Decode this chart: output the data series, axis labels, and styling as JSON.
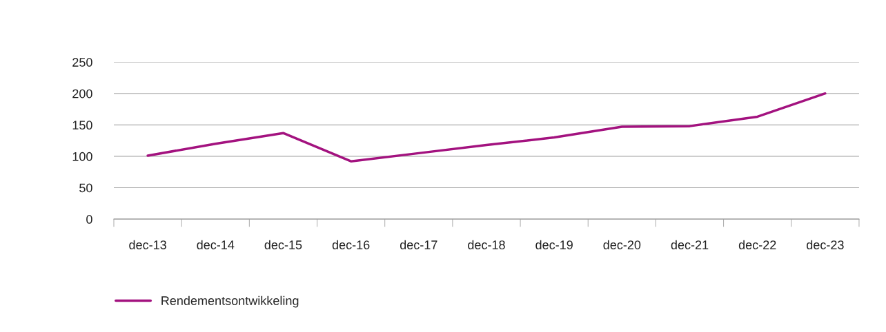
{
  "chart_data": {
    "type": "line",
    "categories": [
      "dec-13",
      "dec-14",
      "dec-15",
      "dec-16",
      "dec-17",
      "dec-18",
      "dec-19",
      "dec-20",
      "dec-21",
      "dec-22",
      "dec-23"
    ],
    "series": [
      {
        "name": "Rendementsontwikkeling",
        "color": "#a3127f",
        "values": [
          101,
          120,
          137,
          92,
          105,
          118,
          130,
          147,
          148,
          163,
          200
        ]
      }
    ],
    "ylim": [
      0,
      250
    ],
    "yticks": [
      0,
      50,
      100,
      150,
      200,
      250
    ],
    "grid": "y",
    "legend": "bottom left",
    "marker": "none",
    "line_style": "solid"
  }
}
